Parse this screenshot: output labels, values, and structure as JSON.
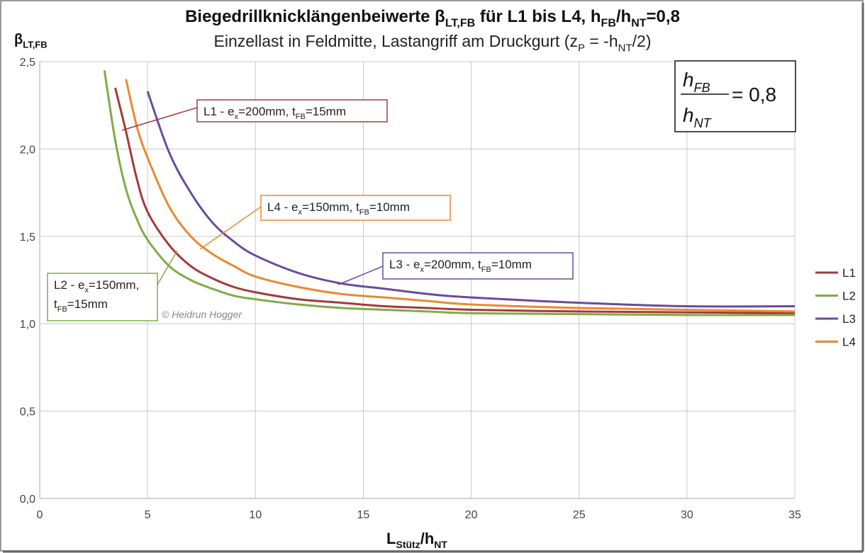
{
  "chart_data": {
    "type": "line",
    "title": [
      {
        "text": "Biegedrillknicklängenbeiwerte β"
      },
      {
        "sub": "LT,FB"
      },
      {
        "text": " für L1 bis L4, h"
      },
      {
        "sub": "FB"
      },
      {
        "text": "/h"
      },
      {
        "sub": "NT"
      },
      {
        "text": "=0,8"
      }
    ],
    "subtitle": [
      {
        "text": "Einzellast in Feldmitte, Lastangriff am Druckgurt (z"
      },
      {
        "sub": "P"
      },
      {
        "text": " = -h"
      },
      {
        "sub": "NT"
      },
      {
        "text": "/2)"
      }
    ],
    "y_label": [
      {
        "text": "β"
      },
      {
        "sub": "LT,FB"
      }
    ],
    "x_label": [
      {
        "text": "L"
      },
      {
        "sub": "Stütz"
      },
      {
        "text": "/h"
      },
      {
        "sub": "NT"
      }
    ],
    "x": [
      3,
      3.5,
      4,
      4.5,
      5,
      6,
      7,
      8,
      9,
      10,
      12,
      14,
      16,
      18,
      20,
      25,
      30,
      35
    ],
    "series": [
      {
        "name": "L1",
        "color": "#a33a3a",
        "values": [
          null,
          2.35,
          2.1,
          1.83,
          1.64,
          1.45,
          1.33,
          1.26,
          1.21,
          1.18,
          1.14,
          1.12,
          1.1,
          1.09,
          1.08,
          1.07,
          1.065,
          1.06
        ]
      },
      {
        "name": "L2",
        "color": "#7fab4a",
        "values": [
          2.45,
          2.05,
          1.77,
          1.6,
          1.48,
          1.33,
          1.25,
          1.2,
          1.16,
          1.14,
          1.11,
          1.09,
          1.08,
          1.07,
          1.06,
          1.055,
          1.05,
          1.05
        ]
      },
      {
        "name": "L3",
        "color": "#6a4a9c",
        "values": [
          null,
          null,
          null,
          null,
          2.33,
          1.98,
          1.75,
          1.58,
          1.47,
          1.39,
          1.29,
          1.23,
          1.2,
          1.17,
          1.15,
          1.12,
          1.1,
          1.1
        ]
      },
      {
        "name": "L4",
        "color": "#e88a30",
        "values": [
          null,
          null,
          2.4,
          2.13,
          1.95,
          1.67,
          1.5,
          1.4,
          1.33,
          1.27,
          1.21,
          1.17,
          1.15,
          1.13,
          1.11,
          1.09,
          1.08,
          1.07
        ]
      }
    ],
    "xlim": [
      0,
      35
    ],
    "xticks": [
      0,
      5,
      10,
      15,
      20,
      25,
      30,
      35
    ],
    "ylim": [
      0,
      2.5
    ],
    "yticks": [
      {
        "value": 0,
        "label": "0,0"
      },
      {
        "value": 0.5,
        "label": "0,5"
      },
      {
        "value": 1,
        "label": "1,0"
      },
      {
        "value": 1.5,
        "label": "1,5"
      },
      {
        "value": 2,
        "label": "2,0"
      },
      {
        "value": 2.5,
        "label": "2,5"
      }
    ],
    "grid": true,
    "legend": "right",
    "annotations": [
      {
        "color": "#a33a3a",
        "lines": [
          [
            {
              "text": "L1 - e"
            },
            {
              "sub": "x"
            },
            {
              "text": "=200mm, t"
            },
            {
              "sub": "FB"
            },
            {
              "text": "=15mm"
            }
          ]
        ]
      },
      {
        "color": "#e88a30",
        "lines": [
          [
            {
              "text": "L4 - e"
            },
            {
              "sub": "x"
            },
            {
              "text": "=150mm, t"
            },
            {
              "sub": "FB"
            },
            {
              "text": "=10mm"
            }
          ]
        ]
      },
      {
        "color": "#6a4a9c",
        "lines": [
          [
            {
              "text": "L3 - e"
            },
            {
              "sub": "x"
            },
            {
              "text": "=200mm, t"
            },
            {
              "sub": "FB"
            },
            {
              "text": "=10mm"
            }
          ]
        ]
      },
      {
        "color": "#7fab4a",
        "lines": [
          [
            {
              "text": "L2 - e"
            },
            {
              "sub": "x"
            },
            {
              "text": "=150mm,"
            }
          ],
          [
            {
              "text": "t"
            },
            {
              "sub": "FB"
            },
            {
              "text": "=15mm"
            }
          ]
        ]
      }
    ],
    "copyright": "© Heidrun Hogger",
    "formula": {
      "numerator": [
        {
          "text": "h"
        },
        {
          "sub": "FB"
        }
      ],
      "denominator": [
        {
          "text": "h"
        },
        {
          "sub": "NT"
        }
      ],
      "rhs": "= 0,8"
    }
  }
}
